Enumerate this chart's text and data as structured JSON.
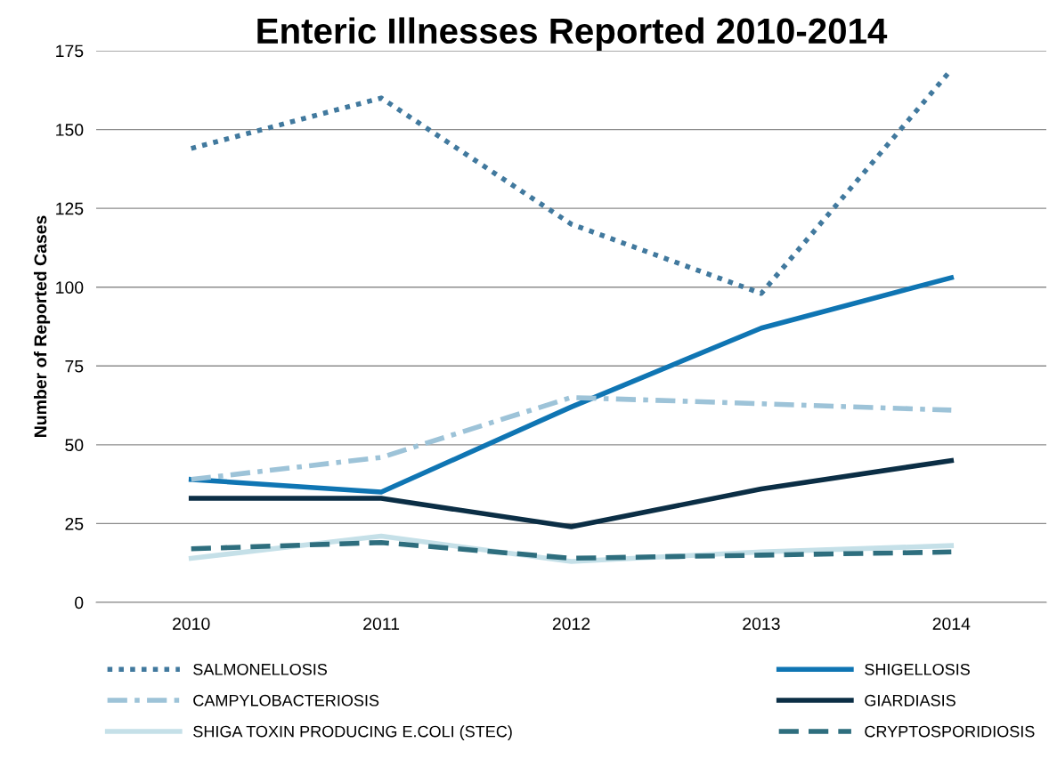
{
  "chart_data": {
    "type": "line",
    "title": "Enteric Illnesses Reported 2010-2014",
    "ylabel": "Number of Reported Cases",
    "categories": [
      "2010",
      "2011",
      "2012",
      "2013",
      "2014"
    ],
    "series": [
      {
        "name": "SALMONELLOSIS",
        "color": "#41799e",
        "line_style": "dotted",
        "values": [
          144,
          160,
          120,
          98,
          169
        ]
      },
      {
        "name": "SHIGELLOSIS",
        "color": "#0f75b3",
        "line_style": "solid",
        "values": [
          39,
          35,
          62,
          87,
          103
        ]
      },
      {
        "name": "CAMPYLOBACTERIOSIS",
        "color": "#9dc3d8",
        "line_style": "dashdot",
        "values": [
          39,
          46,
          65,
          63,
          61
        ]
      },
      {
        "name": "GIARDIASIS",
        "color": "#0b2e45",
        "line_style": "solid",
        "values": [
          33,
          33,
          24,
          36,
          45
        ]
      },
      {
        "name": "SHIGA TOXIN PRODUCING E.COLI (STEC)",
        "color": "#c5e0e8",
        "line_style": "solid",
        "values": [
          14,
          21,
          13,
          16,
          18
        ]
      },
      {
        "name": "CRYPTOSPORIDIOSIS",
        "color": "#2e6e7e",
        "line_style": "dashed",
        "values": [
          17,
          19,
          14,
          15,
          16
        ]
      }
    ],
    "ylim": [
      0,
      175
    ],
    "yticks": [
      0,
      25,
      50,
      75,
      100,
      125,
      150,
      175
    ],
    "grid": "y",
    "legend": "bottom",
    "marker": "none"
  }
}
